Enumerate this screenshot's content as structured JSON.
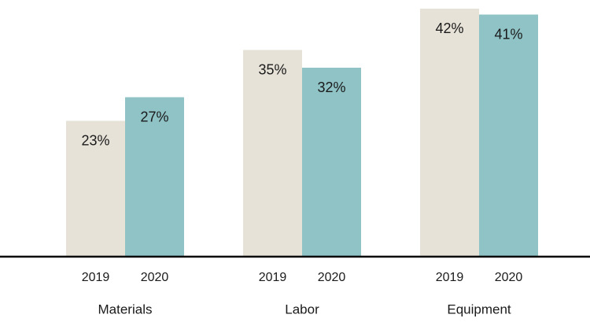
{
  "chart_data": {
    "type": "bar",
    "categories": [
      "Materials",
      "Labor",
      "Equipment"
    ],
    "series": [
      {
        "name": "2019",
        "color": "#e7e2d8",
        "values": [
          23,
          35,
          42
        ],
        "value_labels": [
          "23%",
          "35%",
          "42%"
        ]
      },
      {
        "name": "2020",
        "color": "#8fc3c6",
        "values": [
          27,
          32,
          41
        ],
        "value_labels": [
          "27%",
          "32%",
          "41%"
        ]
      }
    ]
  }
}
